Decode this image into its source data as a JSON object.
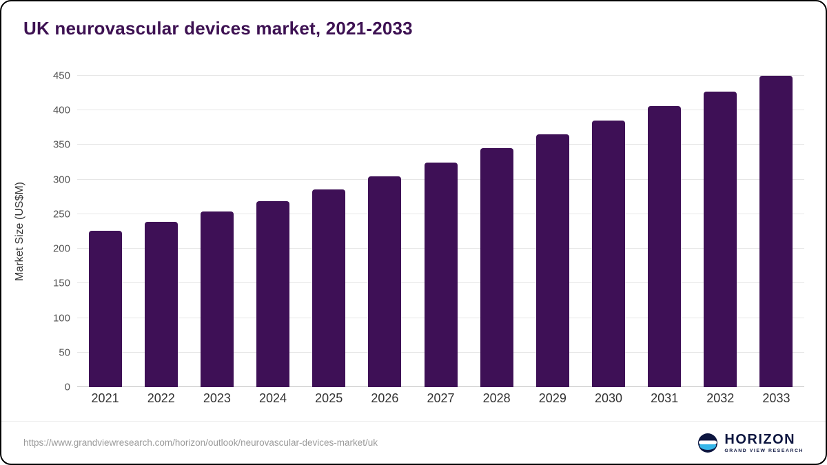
{
  "title": "UK neurovascular devices market, 2021-2033",
  "footer": {
    "source_url": "https://www.grandviewresearch.com/horizon/outlook/neurovascular-devices-market/uk",
    "logo": {
      "name": "HORIZON",
      "subtitle": "GRAND VIEW RESEARCH"
    }
  },
  "colors": {
    "bar": "#3e1056",
    "title": "#3d1152",
    "gridline": "#e6e6e6",
    "axis_text": "#555555",
    "url_text": "#9a9a9a",
    "logo_navy": "#0d1640",
    "logo_blue": "#35b6e9"
  },
  "chart_data": {
    "type": "bar",
    "title": "UK neurovascular devices market, 2021-2033",
    "categories": [
      "2021",
      "2022",
      "2023",
      "2024",
      "2025",
      "2026",
      "2027",
      "2028",
      "2029",
      "2030",
      "2031",
      "2032",
      "2033"
    ],
    "values": [
      226,
      239,
      254,
      269,
      286,
      305,
      325,
      345,
      365,
      385,
      406,
      427,
      450
    ],
    "xlabel": "",
    "ylabel": "Market Size (US$M)",
    "ylim": [
      0,
      450
    ],
    "ytick_step": 50,
    "grid": true,
    "legend": false,
    "bar_color": "#3e1056"
  }
}
